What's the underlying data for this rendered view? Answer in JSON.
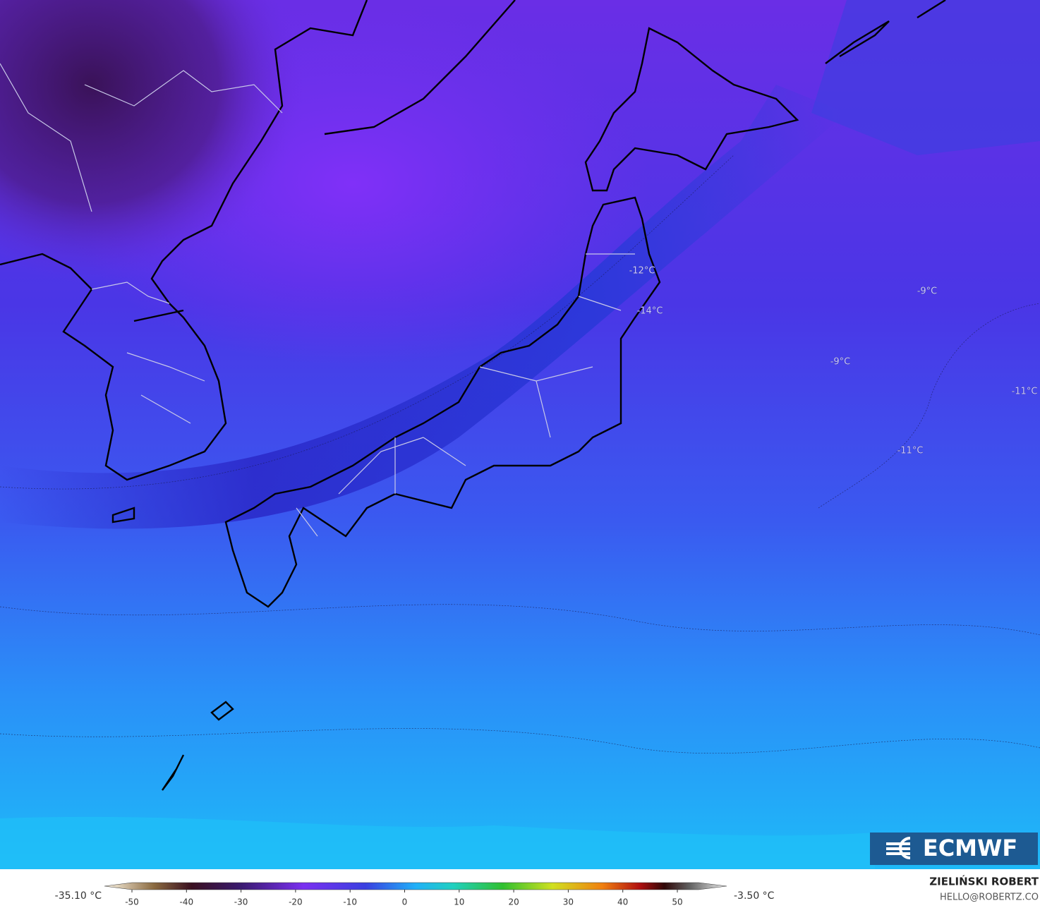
{
  "map": {
    "labels": [
      "-12°C",
      "-14°C",
      "-9°C",
      "-9°C",
      "-11°C",
      "-11°C"
    ],
    "logo": "ECMWF"
  },
  "colorbar": {
    "min_label": "-35.10 °C",
    "max_label": "-3.50 °C",
    "ticks": [
      -50,
      -40,
      -30,
      -20,
      -10,
      0,
      10,
      20,
      30,
      40,
      50
    ]
  },
  "footer": {
    "author": "ZIELIŃSKI ROBERT",
    "contact": "HELLO@ROBERTZ.CO"
  }
}
